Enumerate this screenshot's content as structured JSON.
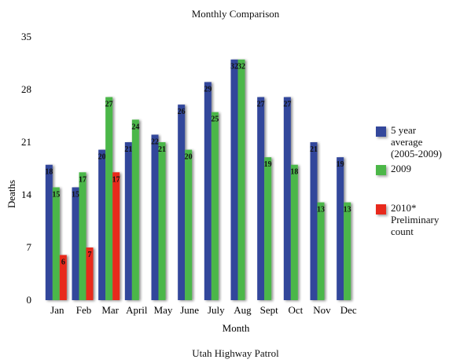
{
  "chart_data": {
    "type": "bar",
    "title": "Monthly Comparison",
    "footer": "Utah Highway Patrol",
    "xlabel": "Month",
    "ylabel": "Deaths",
    "ylim": [
      0,
      35
    ],
    "yticks": [
      0,
      7,
      14,
      21,
      28,
      35
    ],
    "categories": [
      "Jan",
      "Feb",
      "Mar",
      "April",
      "May",
      "June",
      "July",
      "Aug",
      "Sept",
      "Oct",
      "Nov",
      "Dec"
    ],
    "series": [
      {
        "name": "5 year\naverage\n(2005-2009)",
        "color": "#33479b",
        "values": [
          18,
          15,
          20,
          21,
          22,
          26,
          29,
          32,
          27,
          27,
          21,
          19
        ]
      },
      {
        "name": "2009",
        "color": "#4cb748",
        "values": [
          15,
          17,
          27,
          24,
          21,
          20,
          25,
          32,
          19,
          18,
          13,
          13
        ]
      },
      {
        "name": "2010*\nPreliminary\ncount",
        "color": "#e8291c",
        "values": [
          6,
          7,
          17,
          null,
          null,
          null,
          null,
          null,
          null,
          null,
          null,
          null
        ]
      }
    ],
    "legend_position": "right",
    "grid": false
  }
}
